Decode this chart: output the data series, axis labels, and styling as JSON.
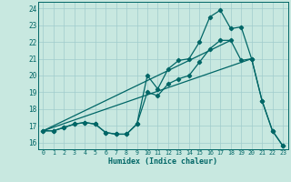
{
  "bg_color": "#c8e8e0",
  "grid_color": "#a0cccc",
  "line_color": "#006666",
  "xlabel": "Humidex (Indice chaleur)",
  "xlim": [
    -0.5,
    23.5
  ],
  "ylim": [
    15.6,
    24.4
  ],
  "yticks": [
    16,
    17,
    18,
    19,
    20,
    21,
    22,
    23,
    24
  ],
  "xticks": [
    0,
    1,
    2,
    3,
    4,
    5,
    6,
    7,
    8,
    9,
    10,
    11,
    12,
    13,
    14,
    15,
    16,
    17,
    18,
    19,
    20,
    21,
    22,
    23
  ],
  "series1_x": [
    0,
    1,
    2,
    3,
    4,
    5,
    6,
    7,
    8,
    9,
    10,
    11,
    12,
    13,
    14,
    15,
    16,
    17,
    18,
    19,
    20,
    21,
    22,
    23
  ],
  "series1_y": [
    16.7,
    16.7,
    16.9,
    17.1,
    17.2,
    17.1,
    16.6,
    16.5,
    16.5,
    17.1,
    20.0,
    19.2,
    20.4,
    20.9,
    21.0,
    22.0,
    23.5,
    23.9,
    22.8,
    22.9,
    21.0,
    18.5,
    16.7,
    15.8
  ],
  "series2_x": [
    0,
    1,
    2,
    3,
    4,
    5,
    6,
    7,
    8,
    9,
    10,
    11,
    12,
    13,
    14,
    15,
    16,
    17,
    18,
    19,
    20,
    21,
    22,
    23
  ],
  "series2_y": [
    16.7,
    16.7,
    16.9,
    17.1,
    17.2,
    17.1,
    16.6,
    16.5,
    16.5,
    17.1,
    19.0,
    18.8,
    19.5,
    19.8,
    20.0,
    20.8,
    21.6,
    22.1,
    22.1,
    20.9,
    21.0,
    18.5,
    16.7,
    15.8
  ],
  "trend1_x": [
    0,
    20
  ],
  "trend1_y": [
    16.7,
    21.0
  ],
  "trend2_x": [
    0,
    18
  ],
  "trend2_y": [
    16.7,
    22.1
  ]
}
